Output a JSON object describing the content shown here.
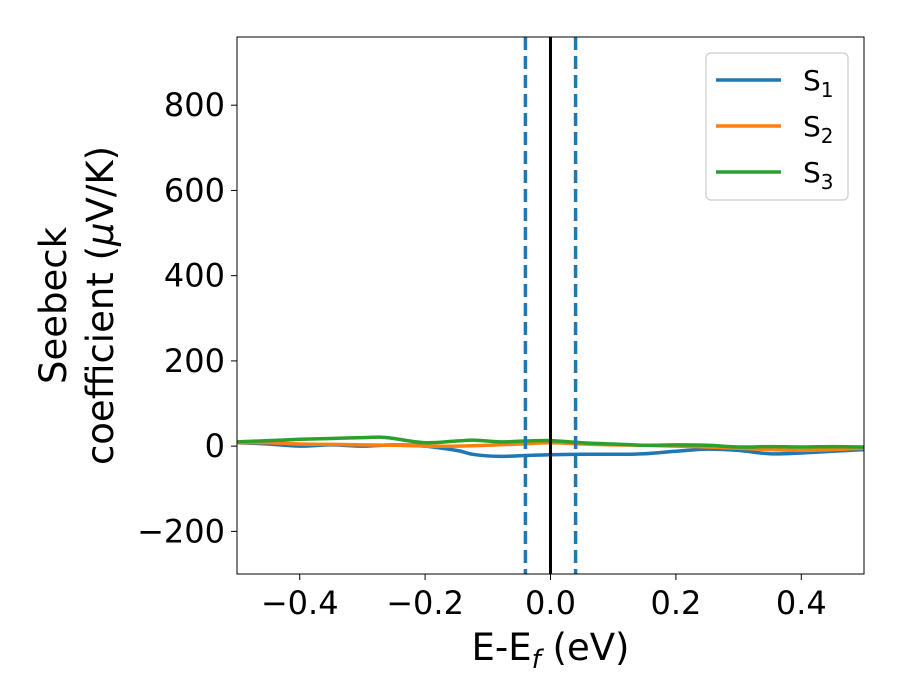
{
  "chart_data": {
    "type": "line",
    "title": "",
    "xlabel": {
      "main": "E-E",
      "sub": "f",
      "unit": " (eV)"
    },
    "ylabel": {
      "line1": "Seebeck",
      "line2_pre": "coefficient  (",
      "line2_mu": "μ",
      "line2_post": "V/K)"
    },
    "xlim": [
      -0.5,
      0.5
    ],
    "ylim": [
      -300,
      960
    ],
    "xticks": [
      -0.4,
      -0.2,
      0.0,
      0.2,
      0.4
    ],
    "xtick_labels": [
      "−0.4",
      "−0.2",
      "0.0",
      "0.2",
      "0.4"
    ],
    "yticks": [
      -200,
      0,
      200,
      400,
      600,
      800
    ],
    "ytick_labels": [
      "−200",
      "0",
      "200",
      "400",
      "600",
      "800"
    ],
    "grid": false,
    "legend": "top-right",
    "series": [
      {
        "name": "S",
        "sub": "1",
        "color": "#1f77b4",
        "x": [
          -0.5,
          -0.45,
          -0.4,
          -0.35,
          -0.3,
          -0.25,
          -0.2,
          -0.15,
          -0.12,
          -0.08,
          -0.04,
          0.0,
          0.05,
          0.1,
          0.15,
          0.2,
          0.25,
          0.3,
          0.35,
          0.4,
          0.45,
          0.5
        ],
        "values": [
          8,
          5,
          0,
          3,
          0,
          3,
          0,
          -10,
          -20,
          -24,
          -22,
          -20,
          -19,
          -19,
          -18,
          -12,
          -7,
          -10,
          -18,
          -16,
          -12,
          -8
        ]
      },
      {
        "name": "S",
        "sub": "2",
        "color": "#ff7f0e",
        "x": [
          -0.5,
          -0.45,
          -0.4,
          -0.35,
          -0.3,
          -0.25,
          -0.2,
          -0.15,
          -0.1,
          -0.05,
          0.0,
          0.05,
          0.1,
          0.15,
          0.2,
          0.25,
          0.3,
          0.35,
          0.4,
          0.45,
          0.5
        ],
        "values": [
          8,
          8,
          5,
          4,
          3,
          2,
          0,
          0,
          2,
          5,
          8,
          5,
          3,
          2,
          0,
          -2,
          -5,
          -8,
          -10,
          -8,
          -5
        ]
      },
      {
        "name": "S",
        "sub": "3",
        "color": "#2ca02c",
        "x": [
          -0.5,
          -0.45,
          -0.4,
          -0.35,
          -0.3,
          -0.27,
          -0.25,
          -0.2,
          -0.15,
          -0.12,
          -0.08,
          -0.04,
          0.0,
          0.05,
          0.1,
          0.15,
          0.2,
          0.25,
          0.3,
          0.35,
          0.4,
          0.45,
          0.5
        ],
        "values": [
          10,
          13,
          16,
          18,
          20,
          21,
          18,
          8,
          12,
          14,
          10,
          12,
          13,
          8,
          5,
          2,
          3,
          2,
          -2,
          -1,
          -2,
          -1,
          -2
        ]
      }
    ],
    "vlines": [
      {
        "x": -0.04,
        "style": "dashed",
        "color": "#1f77b4"
      },
      {
        "x": 0.0,
        "style": "solid",
        "color": "#000000"
      },
      {
        "x": 0.04,
        "style": "dashed",
        "color": "#1f77b4"
      }
    ]
  }
}
